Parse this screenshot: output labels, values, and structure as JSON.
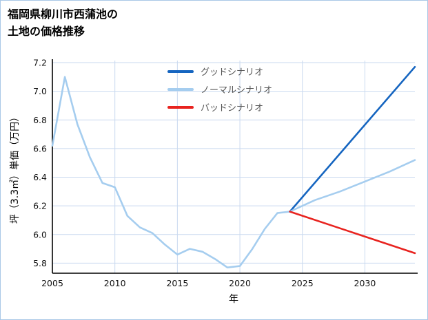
{
  "page": {
    "title_line1": "福岡県柳川市西蒲池の",
    "title_line2": "土地の価格推移"
  },
  "chart_data": {
    "type": "line",
    "title": "福岡県柳川市西蒲池の 土地の価格推移",
    "xlabel": "年",
    "ylabel": "坪（3.3㎡）単価（万円）",
    "xlim": [
      2005,
      2034
    ],
    "ylim": [
      5.73,
      7.2
    ],
    "xticks": [
      2005,
      2010,
      2015,
      2020,
      2025,
      2030
    ],
    "yticks": [
      5.8,
      6.0,
      6.2,
      6.4,
      6.6,
      6.8,
      7.0,
      7.2
    ],
    "grid": true,
    "legend_position": "upper-center-inside",
    "colors": {
      "grid": "#c9d9ef",
      "axis": "#000000",
      "tick_text": "#111111",
      "legend_text": "#555555"
    },
    "series": [
      {
        "id": "history",
        "in_legend": false,
        "color": "#a5cdef",
        "x": [
          2005,
          2006,
          2007,
          2008,
          2009,
          2010,
          2011,
          2012,
          2013,
          2014,
          2015,
          2016,
          2017,
          2018,
          2019,
          2020,
          2021,
          2022,
          2023,
          2024
        ],
        "y": [
          6.62,
          7.1,
          6.77,
          6.54,
          6.36,
          6.33,
          6.13,
          6.05,
          6.01,
          5.93,
          5.86,
          5.9,
          5.88,
          5.83,
          5.77,
          5.78,
          5.9,
          6.04,
          6.15,
          6.16
        ]
      },
      {
        "id": "good",
        "name": "グッドシナリオ",
        "in_legend": true,
        "color": "#1565c0",
        "x": [
          2024,
          2034
        ],
        "y": [
          6.16,
          7.17
        ]
      },
      {
        "id": "normal",
        "name": "ノーマルシナリオ",
        "in_legend": true,
        "color": "#a5cdef",
        "x": [
          2024,
          2026,
          2028,
          2030,
          2032,
          2034
        ],
        "y": [
          6.16,
          6.24,
          6.3,
          6.37,
          6.44,
          6.52
        ]
      },
      {
        "id": "bad",
        "name": "バッドシナリオ",
        "in_legend": true,
        "color": "#e8231f",
        "x": [
          2024,
          2034
        ],
        "y": [
          6.16,
          5.87
        ]
      }
    ]
  }
}
